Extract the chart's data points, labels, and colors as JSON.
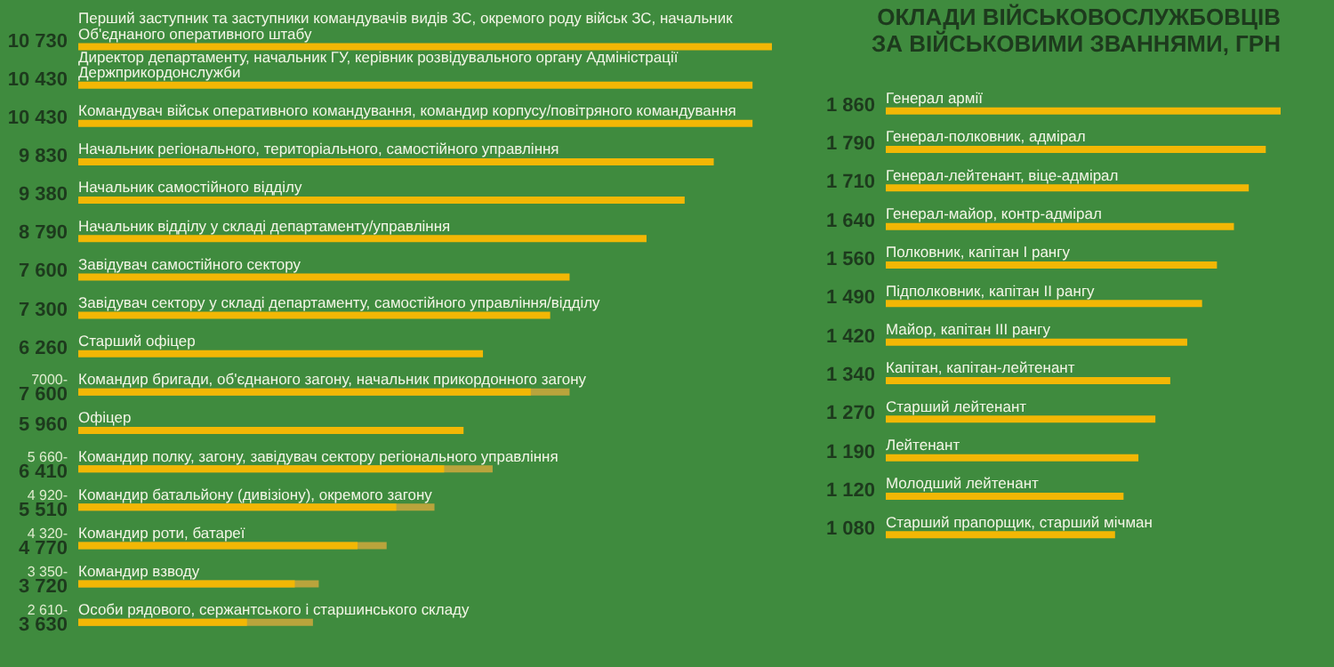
{
  "chart_data": [
    {
      "type": "bar",
      "orientation": "horizontal",
      "categories": [
        "Перший заступник та заступники командувачів видів ЗС, окремого роду військ ЗС, начальник Об'єднаного оперативного штабу",
        "Директор департаменту, начальник ГУ, керівник розвідувального органу Адміністрації Держприкордонслужби",
        "Командувач військ оперативного командування, командир корпусу/повітряного командування",
        "Начальник регіонального, територіального, самостійного управління",
        "Начальник самостійного відділу",
        "Начальник відділу у складі департаменту/управління",
        "Завідувач самостійного сектору",
        "Завідувач сектору у складі департаменту, самостійного управління/відділу",
        "Старший офіцер",
        "Командир бригади, об'єднаного загону, начальник прикордонного загону",
        "Офіцер",
        "Командир полку, загону, завідувач сектору регіонального управління",
        "Командир батальйону (дивізіону), окремого загону",
        "Командир роти, батареї",
        "Командир взводу",
        "Особи рядового, сержантського і старшинського складу"
      ],
      "series": [
        {
          "colors": [
            "#f2b705",
            "#f2b705",
            "#f2b705",
            "#f2b705",
            "#f2b705",
            "#f2b705",
            "#f2b705",
            "#f2b705",
            "#f2b705",
            "#b9a43c",
            "#f2b705",
            "#b9a43c",
            "#b9a43c",
            "#b9a43c",
            "#b9a43c",
            "#b9a43c"
          ],
          "values": [
            10730,
            10430,
            10430,
            9830,
            9380,
            8790,
            7600,
            7300,
            6260,
            7600,
            5960,
            6410,
            5510,
            4770,
            3720,
            3630
          ],
          "value_labels": [
            "10 730",
            "10 430",
            "10 430",
            "9 830",
            "9 380",
            "8 790",
            "7 600",
            "7 300",
            "6 260",
            "7 600",
            "5 960",
            "6 410",
            "5 510",
            "4 770",
            "3 720",
            "3 630"
          ]
        },
        {
          "color": "#f2b705",
          "values": [
            null,
            null,
            null,
            null,
            null,
            null,
            null,
            null,
            null,
            7000,
            null,
            5660,
            4920,
            4320,
            3350,
            2610
          ],
          "value_labels": [
            null,
            null,
            null,
            null,
            null,
            null,
            null,
            null,
            null,
            "7000-",
            null,
            "5 660-",
            "4 920-",
            "4 320-",
            "3 350-",
            "2 610-"
          ]
        }
      ]
    },
    {
      "type": "bar",
      "orientation": "horizontal",
      "title": "ОКЛАДИ ВІЙСЬКОВОСЛУЖБОВЦІВ ЗА ВІЙСЬКОВИМИ ЗВАННЯМИ, ГРН",
      "categories": [
        "Генерал армії",
        "Генерал-полковник, адмірал",
        "Генерал-лейтенант, віце-адмірал",
        "Генерал-майор, контр-адмірал",
        "Полковник, капітан І рангу",
        "Підполковник, капітан ІІ рангу",
        "Майор, капітан ІІІ рангу",
        "Капітан, капітан-лейтенант",
        "Старший лейтенант",
        "Лейтенант",
        "Молодший лейтенант",
        "Старший прапорщик, старший мічман"
      ],
      "series": [
        {
          "color": "#f2b705",
          "values": [
            1860,
            1790,
            1710,
            1640,
            1560,
            1490,
            1420,
            1340,
            1270,
            1190,
            1120,
            1080
          ],
          "value_labels": [
            "1 860",
            "1 790",
            "1 710",
            "1 640",
            "1 560",
            "1 490",
            "1 420",
            "1 340",
            "1 270",
            "1 190",
            "1 120",
            "1 080"
          ]
        }
      ]
    }
  ]
}
